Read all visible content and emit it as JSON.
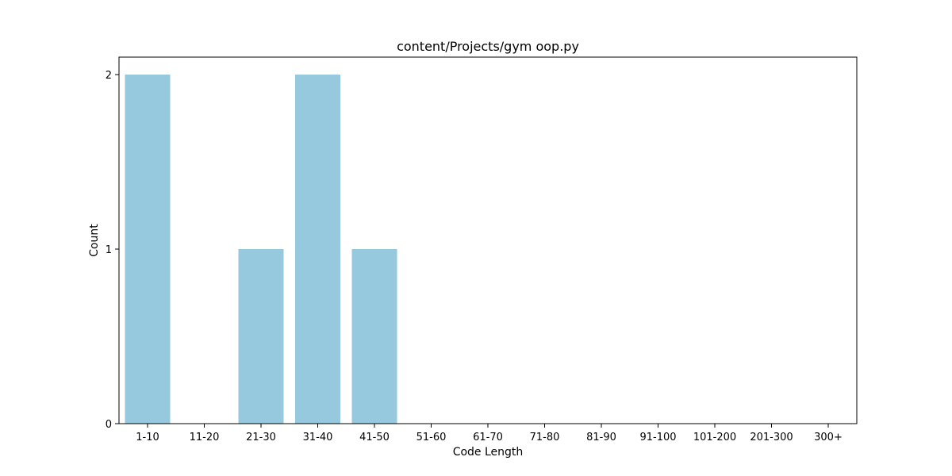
{
  "chart_data": {
    "type": "bar",
    "title": "content/Projects/gym oop.py",
    "xlabel": "Code Length",
    "ylabel": "Count",
    "categories": [
      "1-10",
      "11-20",
      "21-30",
      "31-40",
      "41-50",
      "51-60",
      "61-70",
      "71-80",
      "81-90",
      "91-100",
      "101-200",
      "201-300",
      "300+"
    ],
    "values": [
      2,
      0,
      1,
      2,
      1,
      0,
      0,
      0,
      0,
      0,
      0,
      0,
      0
    ],
    "ylim": [
      0,
      2.1
    ],
    "yticks": [
      0,
      1,
      2
    ],
    "bar_color": "#96c9de",
    "grid": false,
    "legend": "none"
  }
}
